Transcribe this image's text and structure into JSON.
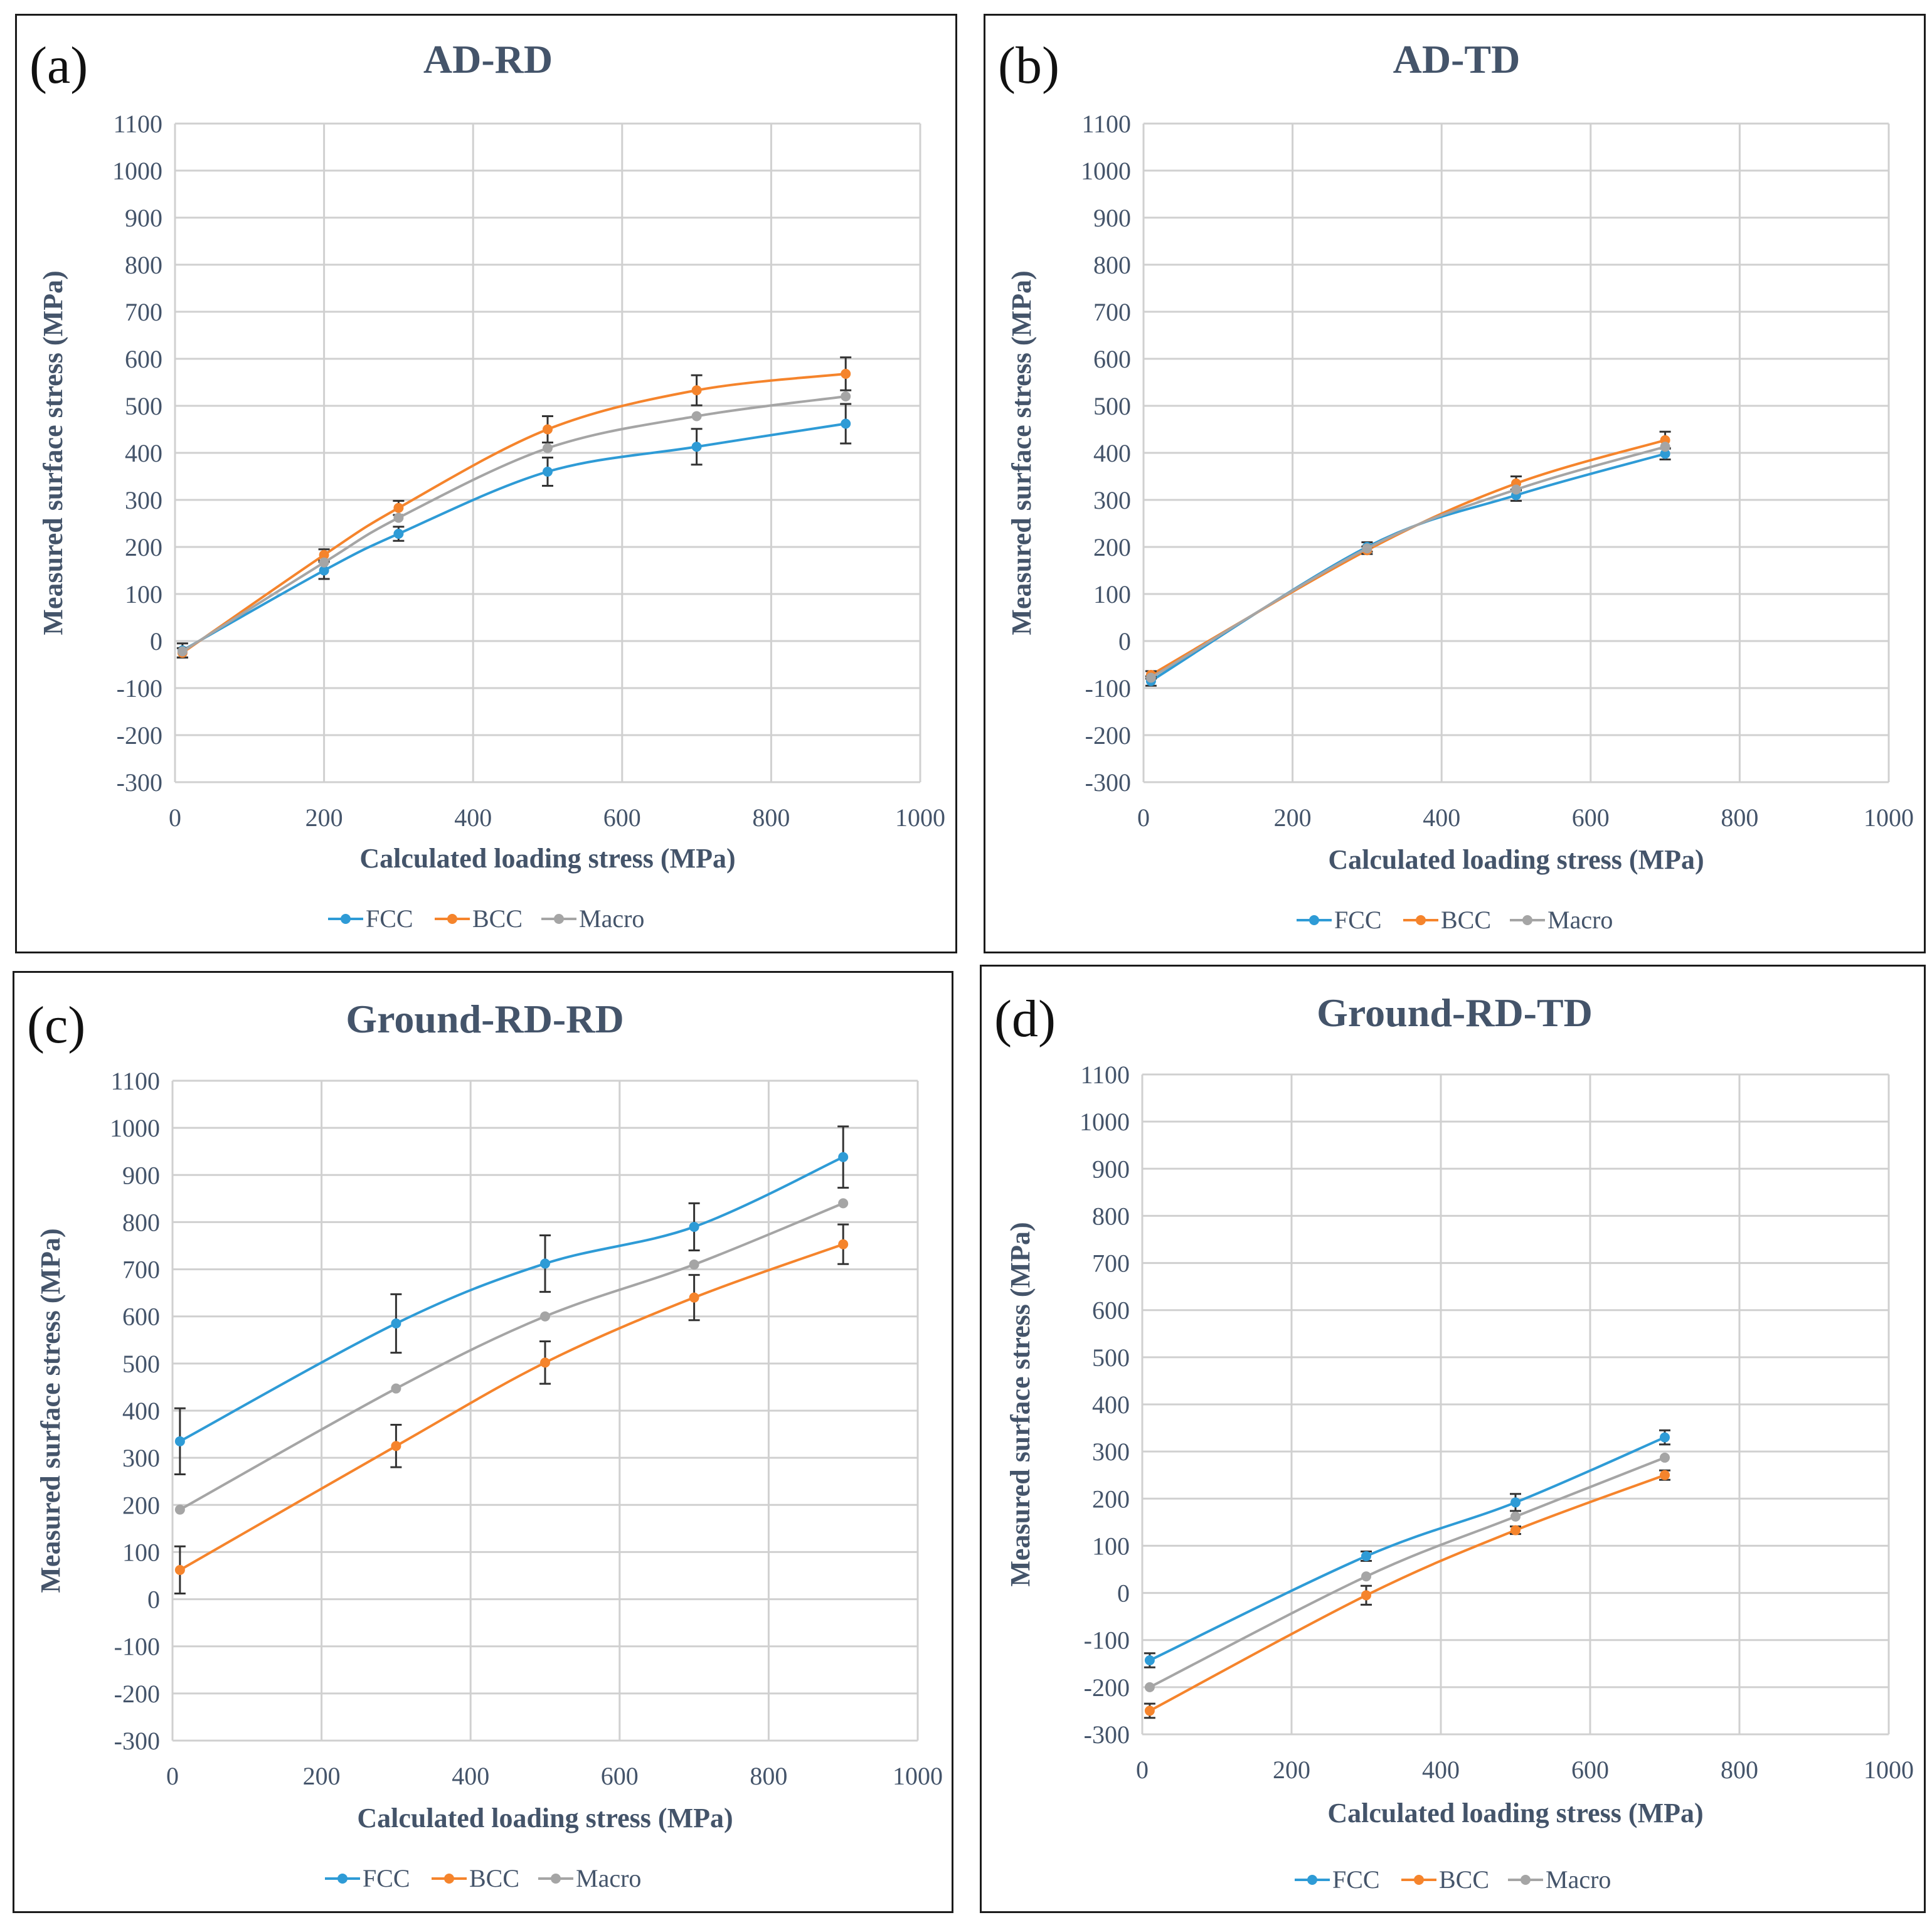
{
  "colors": {
    "FCC": "#2e9bd6",
    "BCC": "#f5842c",
    "Macro": "#a5a5a5",
    "text": "#44546a",
    "grid": "#d0d0d0",
    "error": "#333333"
  },
  "chart_data": [
    {
      "panel_label": "(a)",
      "title": "AD-RD",
      "type": "line",
      "xlabel": "Calculated loading stress (MPa)",
      "ylabel": "Measured surface stress (MPa)",
      "xlim": [
        0,
        1000
      ],
      "ylim": [
        -300,
        1100
      ],
      "xticks": [
        "0",
        "200",
        "400",
        "600",
        "800",
        "1000"
      ],
      "yticks": [
        "-300",
        "-200",
        "-100",
        "0",
        "100",
        "200",
        "300",
        "400",
        "500",
        "600",
        "700",
        "800",
        "900",
        "1000",
        "1100"
      ],
      "legend": [
        "FCC",
        "BCC",
        "Macro"
      ],
      "legend_position": "bottom",
      "series": [
        {
          "name": "FCC",
          "x": [
            10,
            200,
            300,
            500,
            700,
            900
          ],
          "y": [
            -20,
            150,
            228,
            360,
            413,
            462
          ],
          "err": [
            15,
            18,
            15,
            30,
            38,
            42
          ]
        },
        {
          "name": "BCC",
          "x": [
            10,
            200,
            300,
            500,
            700,
            900
          ],
          "y": [
            -25,
            183,
            283,
            450,
            533,
            568
          ],
          "err": [
            10,
            12,
            15,
            28,
            32,
            35
          ]
        },
        {
          "name": "Macro",
          "x": [
            10,
            200,
            300,
            500,
            700,
            900
          ],
          "y": [
            -22,
            167,
            262,
            410,
            478,
            520
          ],
          "err": [
            0,
            0,
            0,
            0,
            0,
            0
          ]
        }
      ]
    },
    {
      "panel_label": "(b)",
      "title": "AD-TD",
      "type": "line",
      "xlabel": "Calculated loading stress (MPa)",
      "ylabel": "Measured surface stress (MPa)",
      "xlim": [
        0,
        1000
      ],
      "ylim": [
        -300,
        1100
      ],
      "xticks": [
        "0",
        "200",
        "400",
        "600",
        "800",
        "1000"
      ],
      "yticks": [
        "-300",
        "-200",
        "-100",
        "0",
        "100",
        "200",
        "300",
        "400",
        "500",
        "600",
        "700",
        "800",
        "900",
        "1000",
        "1100"
      ],
      "legend": [
        "FCC",
        "BCC",
        "Macro"
      ],
      "legend_position": "bottom",
      "series": [
        {
          "name": "FCC",
          "x": [
            10,
            300,
            500,
            700
          ],
          "y": [
            -85,
            200,
            310,
            398
          ],
          "err": [
            10,
            10,
            12,
            12
          ]
        },
        {
          "name": "BCC",
          "x": [
            10,
            300,
            500,
            700
          ],
          "y": [
            -72,
            193,
            335,
            427
          ],
          "err": [
            8,
            8,
            15,
            18
          ]
        },
        {
          "name": "Macro",
          "x": [
            10,
            300,
            500,
            700
          ],
          "y": [
            -78,
            197,
            322,
            413
          ],
          "err": [
            0,
            0,
            0,
            0
          ]
        }
      ]
    },
    {
      "panel_label": "(c)",
      "title": "Ground-RD-RD",
      "type": "line",
      "xlabel": "Calculated loading stress (MPa)",
      "ylabel": "Measured surface stress (MPa)",
      "xlim": [
        0,
        1000
      ],
      "ylim": [
        -300,
        1100
      ],
      "xticks": [
        "0",
        "200",
        "400",
        "600",
        "800",
        "1000"
      ],
      "yticks": [
        "-300",
        "-200",
        "-100",
        "0",
        "100",
        "200",
        "300",
        "400",
        "500",
        "600",
        "700",
        "800",
        "900",
        "1000",
        "1100"
      ],
      "legend": [
        "FCC",
        "BCC",
        "Macro"
      ],
      "legend_position": "bottom",
      "series": [
        {
          "name": "FCC",
          "x": [
            10,
            300,
            500,
            700,
            900
          ],
          "y": [
            335,
            585,
            712,
            790,
            938
          ],
          "err": [
            70,
            62,
            60,
            50,
            65
          ]
        },
        {
          "name": "BCC",
          "x": [
            10,
            300,
            500,
            700,
            900
          ],
          "y": [
            62,
            325,
            502,
            640,
            753
          ],
          "err": [
            50,
            45,
            45,
            48,
            42
          ]
        },
        {
          "name": "Macro",
          "x": [
            10,
            300,
            500,
            700,
            900
          ],
          "y": [
            190,
            447,
            600,
            710,
            840
          ],
          "err": [
            0,
            0,
            0,
            0,
            0
          ]
        }
      ]
    },
    {
      "panel_label": "(d)",
      "title": "Ground-RD-TD",
      "type": "line",
      "xlabel": "Calculated loading stress (MPa)",
      "ylabel": "Measured surface stress (MPa)",
      "xlim": [
        0,
        1000
      ],
      "ylim": [
        -300,
        1100
      ],
      "xticks": [
        "0",
        "200",
        "400",
        "600",
        "800",
        "1000"
      ],
      "yticks": [
        "-300",
        "-200",
        "-100",
        "0",
        "100",
        "200",
        "300",
        "400",
        "500",
        "600",
        "700",
        "800",
        "900",
        "1000",
        "1100"
      ],
      "legend": [
        "FCC",
        "BCC",
        "Macro"
      ],
      "legend_position": "bottom",
      "series": [
        {
          "name": "FCC",
          "x": [
            10,
            300,
            500,
            700
          ],
          "y": [
            -143,
            78,
            192,
            330
          ],
          "err": [
            15,
            10,
            18,
            15
          ]
        },
        {
          "name": "BCC",
          "x": [
            10,
            300,
            500,
            700
          ],
          "y": [
            -250,
            -5,
            133,
            250
          ],
          "err": [
            15,
            20,
            8,
            10
          ]
        },
        {
          "name": "Macro",
          "x": [
            10,
            300,
            500,
            700
          ],
          "y": [
            -200,
            35,
            162,
            287
          ],
          "err": [
            0,
            0,
            0,
            0
          ]
        }
      ]
    }
  ]
}
